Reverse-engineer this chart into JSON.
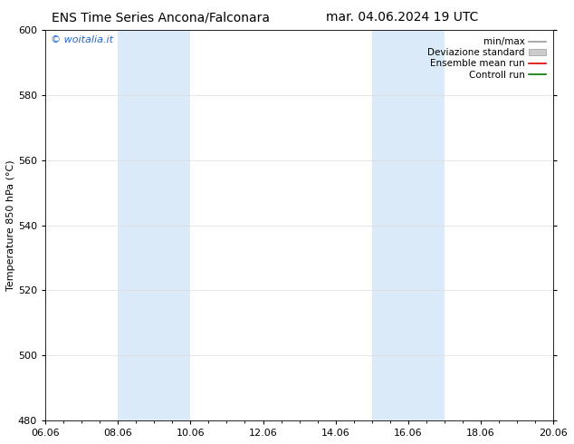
{
  "title_left": "ENS Time Series Ancona/Falconara",
  "title_right": "mar. 04.06.2024 19 UTC",
  "ylabel": "Temperature 850 hPa (°C)",
  "ylim": [
    480,
    600
  ],
  "yticks": [
    480,
    500,
    520,
    540,
    560,
    580,
    600
  ],
  "xlim": [
    0,
    14
  ],
  "xtick_labels": [
    "06.06",
    "08.06",
    "10.06",
    "12.06",
    "14.06",
    "16.06",
    "18.06",
    "20.06"
  ],
  "xtick_positions": [
    0,
    2,
    4,
    6,
    8,
    10,
    12,
    14
  ],
  "shaded_bands": [
    {
      "xmin": 2,
      "xmax": 4
    },
    {
      "xmin": 9,
      "xmax": 11
    }
  ],
  "shade_color": "#daeaf8",
  "watermark": "© woitalia.it",
  "watermark_color": "#2266cc",
  "legend_labels": [
    "min/max",
    "Deviazione standard",
    "Ensemble mean run",
    "Controll run"
  ],
  "bg_color": "#ffffff",
  "grid_color": "#dddddd",
  "title_fontsize": 10,
  "axis_label_fontsize": 8,
  "tick_fontsize": 8,
  "legend_fontsize": 7.5
}
